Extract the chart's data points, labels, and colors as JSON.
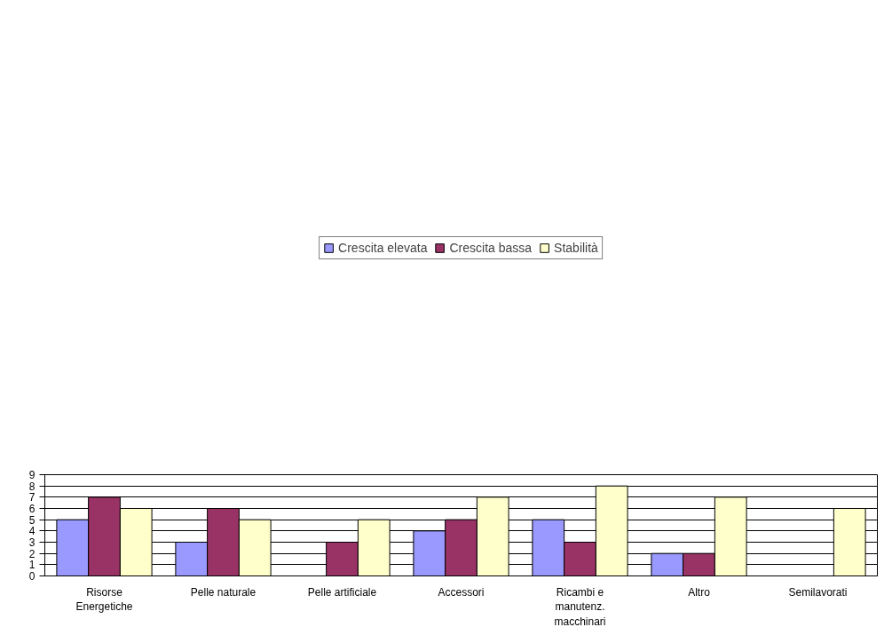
{
  "chart_data": {
    "type": "bar",
    "categories": [
      "Risorse Energetiche",
      "Pelle naturale",
      "Pelle artificiale",
      "Accessori",
      "Ricambi e manutenz. macchinari",
      "Altro",
      "Semilavorati"
    ],
    "series": [
      {
        "name": "Crescita elevata",
        "color": "#9999ff",
        "values": [
          5,
          3,
          null,
          4,
          5,
          2,
          null
        ]
      },
      {
        "name": "Crescita bassa",
        "color": "#993366",
        "values": [
          7,
          6,
          3,
          5,
          3,
          2,
          null
        ]
      },
      {
        "name": "Stabilità",
        "color": "#ffffcc",
        "values": [
          6,
          5,
          5,
          7,
          8,
          7,
          6
        ]
      }
    ],
    "ylim": [
      0,
      9
    ],
    "yticks": [
      0,
      1,
      2,
      3,
      4,
      5,
      6,
      7,
      8,
      9
    ],
    "grid": "y",
    "legend": "top"
  }
}
